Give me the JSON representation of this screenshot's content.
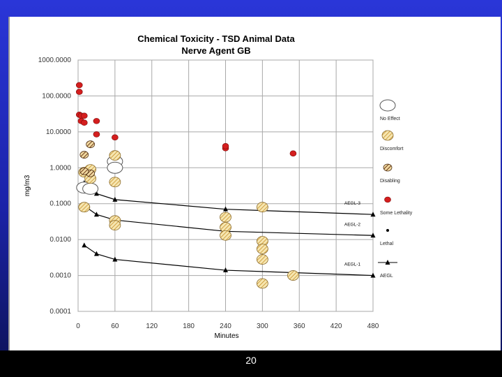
{
  "slide": {
    "page_number": "20"
  },
  "colors": {
    "background": "#1b23a8",
    "grid": "#a0a0a0",
    "disabling_marker": "#a0522d",
    "severe_lethality_marker": "#d41e1e",
    "aegl_line": "#000000",
    "hatch": "#e8c476"
  },
  "chart_data": {
    "type": "scatter",
    "title": "Chemical Toxicity - TSD Animal Data",
    "subtitle": "Nerve Agent GB",
    "xlabel": "Minutes",
    "ylabel": "mg/m3",
    "x_ticks": [
      0,
      60,
      120,
      180,
      240,
      300,
      360,
      420,
      480
    ],
    "x_tick_labels": [
      "0",
      "60",
      "120",
      "180",
      "240",
      "300",
      "360",
      "420",
      "480"
    ],
    "y_ticks": [
      0.0001,
      0.001,
      0.01,
      0.1,
      1,
      10,
      100,
      1000
    ],
    "y_tick_labels": [
      "0.0001",
      "0.0010",
      "0.0100",
      "0.1000",
      "1.0000",
      "10.0000",
      "100.0000",
      "1000.0000"
    ],
    "xlim": [
      0,
      480
    ],
    "ylim": [
      0.0001,
      1000
    ],
    "y_scale": "log",
    "grid": true,
    "legend_position": "right",
    "legend": [
      {
        "label": "No Effect",
        "marker": "no-effect"
      },
      {
        "label": "Discomfort",
        "marker": "discomfort"
      },
      {
        "label": "Disabling",
        "marker": "disabling"
      },
      {
        "label": "Some Lethality",
        "marker": "some-lethality"
      },
      {
        "label": "Lethal",
        "marker": "lethal"
      },
      {
        "label": "AEGL",
        "marker": "aegl"
      }
    ],
    "series": [
      {
        "name": "No Effect",
        "marker": "no-effect",
        "points": [
          [
            60,
            1.5
          ],
          [
            60,
            1.0
          ],
          [
            10,
            0.28
          ],
          [
            20,
            0.26
          ]
        ]
      },
      {
        "name": "Discomfort",
        "marker": "discomfort",
        "points": [
          [
            10,
            0.75
          ],
          [
            20,
            0.9
          ],
          [
            20,
            0.5
          ],
          [
            60,
            2.2
          ],
          [
            60,
            0.4
          ],
          [
            60,
            0.034
          ],
          [
            60,
            0.025
          ],
          [
            10,
            0.08
          ],
          [
            240,
            0.042
          ],
          [
            240,
            0.022
          ],
          [
            240,
            0.013
          ],
          [
            300,
            0.08
          ],
          [
            300,
            0.009
          ],
          [
            300,
            0.0055
          ],
          [
            300,
            0.0028
          ],
          [
            300,
            0.0006
          ],
          [
            350,
            0.001
          ]
        ]
      },
      {
        "name": "Disabling",
        "marker": "disabling",
        "points": [
          [
            10,
            2.3
          ],
          [
            20,
            0.7
          ],
          [
            20,
            4.5
          ],
          [
            10,
            0.8
          ]
        ]
      },
      {
        "name": "Some Lethality",
        "marker": "some-lethality",
        "points": [
          [
            2,
            200
          ],
          [
            2,
            130
          ],
          [
            2,
            30
          ],
          [
            5,
            28
          ],
          [
            10,
            28
          ],
          [
            5,
            20
          ],
          [
            10,
            18
          ],
          [
            30,
            20
          ],
          [
            30,
            8.5
          ],
          [
            60,
            7.0
          ],
          [
            240,
            3.5
          ],
          [
            240,
            4.0
          ],
          [
            350,
            2.5
          ]
        ]
      }
    ],
    "aegl_lines": [
      {
        "label": "AEGL-3",
        "points": [
          [
            10,
            0.38
          ],
          [
            30,
            0.19
          ],
          [
            60,
            0.13
          ],
          [
            240,
            0.07
          ],
          [
            480,
            0.05
          ]
        ]
      },
      {
        "label": "AEGL-2",
        "points": [
          [
            10,
            0.087
          ],
          [
            30,
            0.05
          ],
          [
            60,
            0.035
          ],
          [
            240,
            0.017
          ],
          [
            480,
            0.013
          ]
        ]
      },
      {
        "label": "AEGL-1",
        "points": [
          [
            10,
            0.0069
          ],
          [
            30,
            0.004
          ],
          [
            60,
            0.0028
          ],
          [
            240,
            0.0014
          ],
          [
            480,
            0.001
          ]
        ]
      }
    ]
  }
}
